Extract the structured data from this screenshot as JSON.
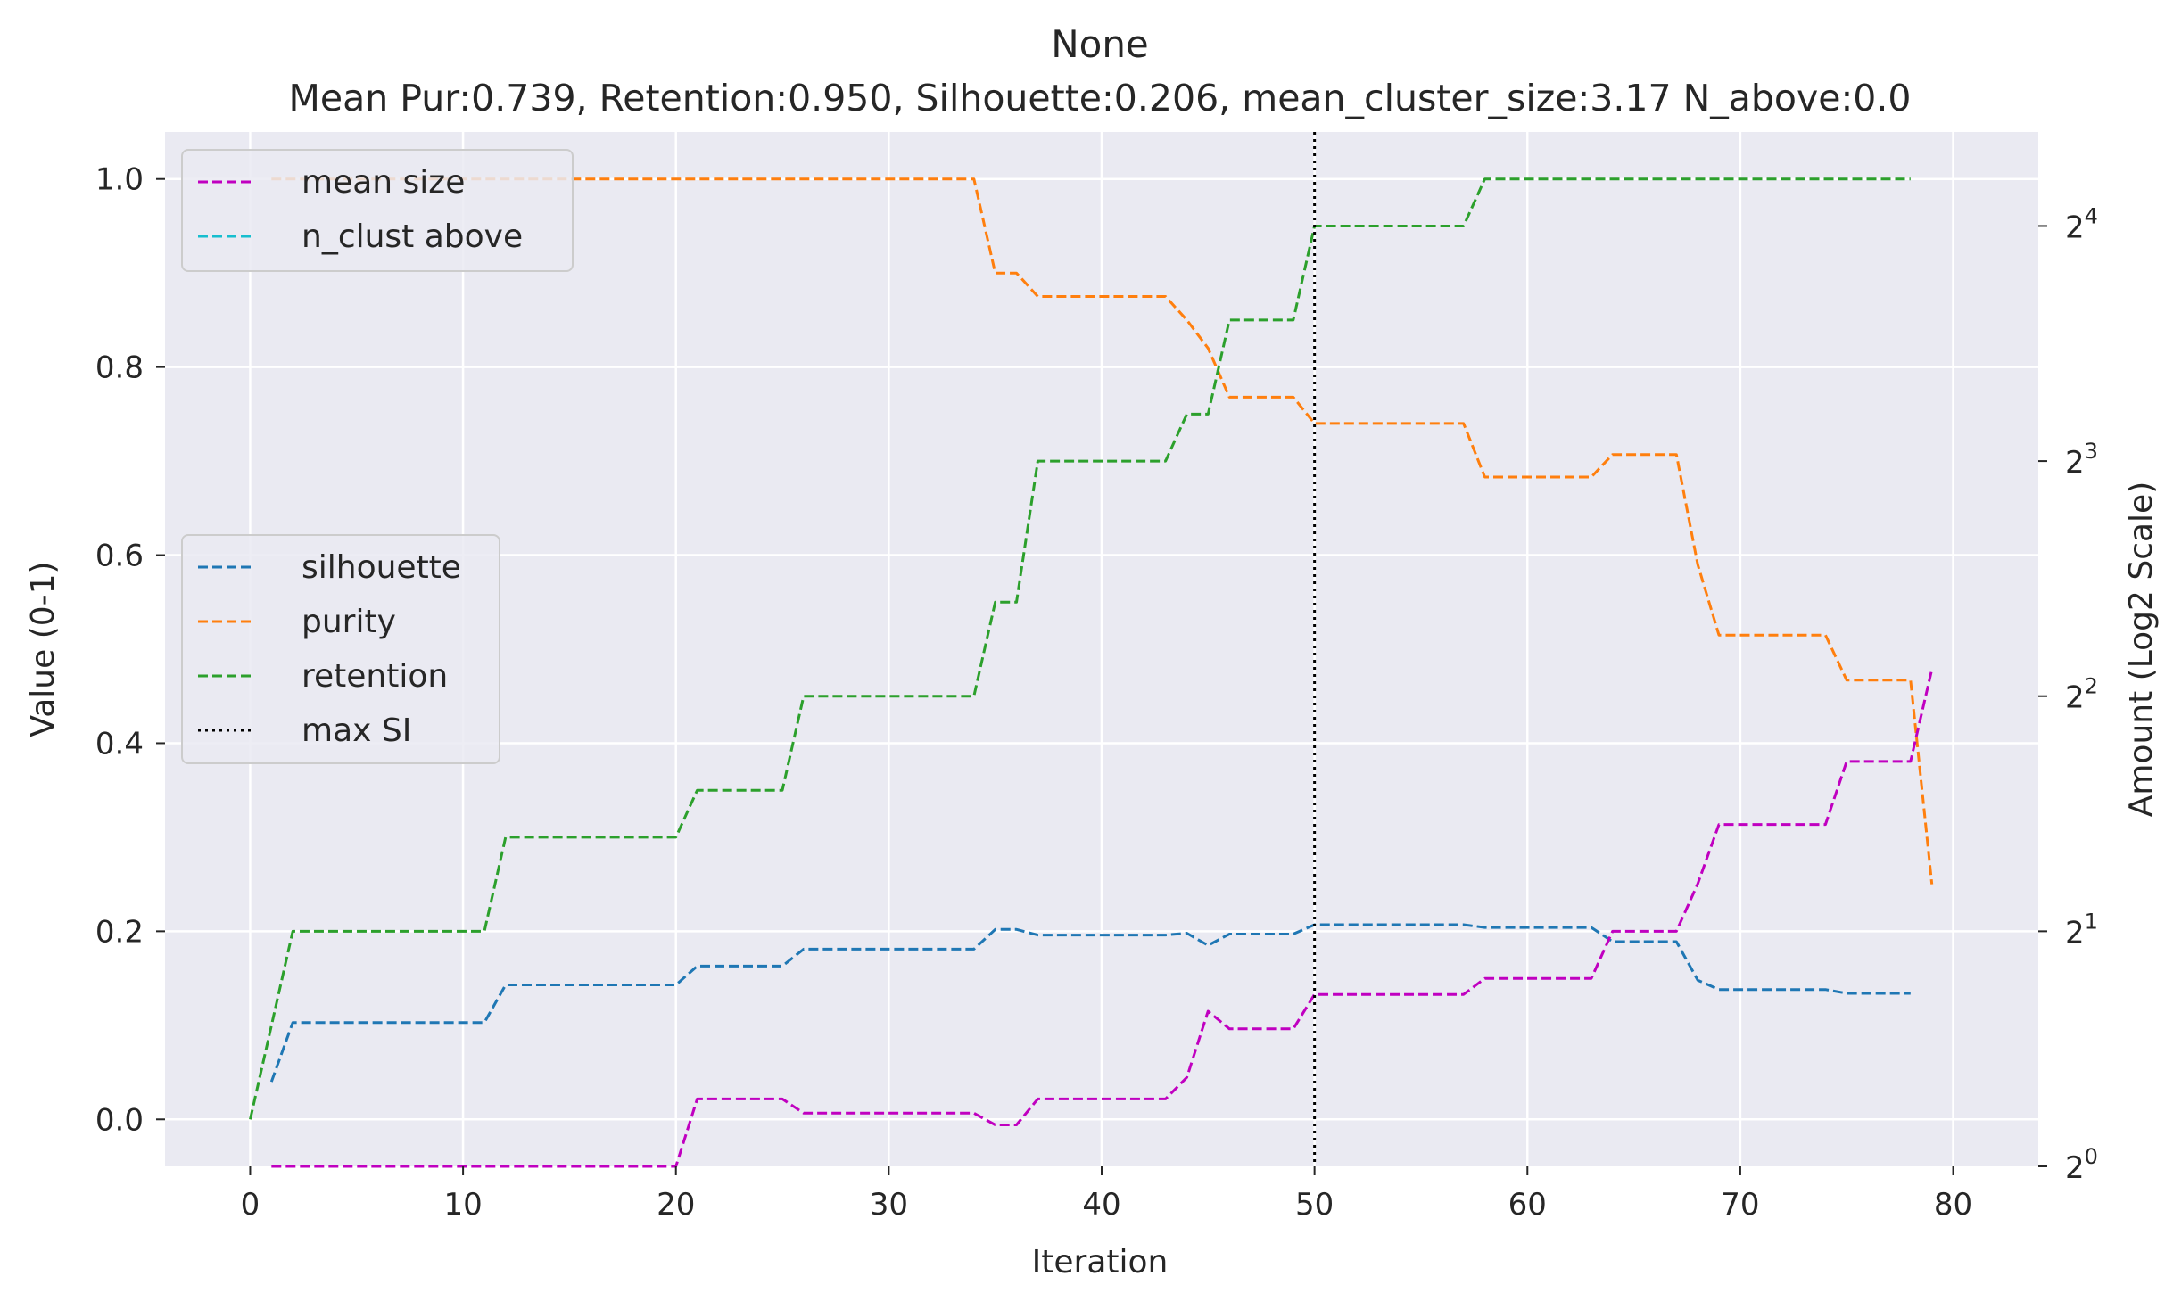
{
  "chart_data": {
    "type": "line",
    "title": "None",
    "subtitle": "Mean Pur:0.739, Retention:0.950, Silhouette:0.206, mean_cluster_size:3.17 N_above:0.0",
    "xlabel": "Iteration",
    "ylabel": "Value (0-1)",
    "y2label": "Amount (Log2 Scale)",
    "xlim": [
      -4,
      84
    ],
    "ylim": [
      -0.05,
      1.05
    ],
    "y2_scale": "log2",
    "y2_exponent_range": [
      0,
      4.4
    ],
    "x_ticks": [
      0,
      10,
      20,
      30,
      40,
      50,
      60,
      70,
      80
    ],
    "y_ticks": [
      0.0,
      0.2,
      0.4,
      0.6,
      0.8,
      1.0
    ],
    "y_tick_labels": [
      "0.0",
      "0.2",
      "0.4",
      "0.6",
      "0.8",
      "1.0"
    ],
    "y2_ticks": [
      {
        "exp": 0,
        "base": "2",
        "sup": "0"
      },
      {
        "exp": 1,
        "base": "2",
        "sup": "1"
      },
      {
        "exp": 2,
        "base": "2",
        "sup": "2"
      },
      {
        "exp": 3,
        "base": "2",
        "sup": "3"
      },
      {
        "exp": 4,
        "base": "2",
        "sup": "4"
      }
    ],
    "grid": true,
    "vline": {
      "x": 50,
      "name": "max SI",
      "color": "#000000"
    },
    "legend_left": {
      "placement": "center-left",
      "entries": [
        {
          "name": "silhouette",
          "color": "#1f77b4",
          "style": "dashed"
        },
        {
          "name": "purity",
          "color": "#ff7f0e",
          "style": "dashed"
        },
        {
          "name": "retention",
          "color": "#2ca02c",
          "style": "dashed"
        },
        {
          "name": "max SI",
          "color": "#000000",
          "style": "dotted"
        }
      ]
    },
    "legend_right": {
      "placement": "upper-left",
      "entries": [
        {
          "name": "mean size",
          "color": "#c000c0",
          "style": "dashed"
        },
        {
          "name": "n_clust above",
          "color": "#17becf",
          "style": "dashed"
        }
      ]
    },
    "series": [
      {
        "name": "silhouette",
        "axis": "left",
        "color": "#1f77b4",
        "points": [
          [
            1,
            0.04
          ],
          [
            2,
            0.103
          ],
          [
            11,
            0.103
          ],
          [
            12,
            0.143
          ],
          [
            20,
            0.143
          ],
          [
            21,
            0.163
          ],
          [
            25,
            0.163
          ],
          [
            26,
            0.181
          ],
          [
            34,
            0.181
          ],
          [
            35,
            0.202
          ],
          [
            36,
            0.202
          ],
          [
            37,
            0.196
          ],
          [
            43,
            0.196
          ],
          [
            44,
            0.198
          ],
          [
            45,
            0.185
          ],
          [
            46,
            0.197
          ],
          [
            49,
            0.197
          ],
          [
            50,
            0.207
          ],
          [
            57,
            0.207
          ],
          [
            58,
            0.204
          ],
          [
            63,
            0.204
          ],
          [
            64,
            0.189
          ],
          [
            67,
            0.189
          ],
          [
            68,
            0.148
          ],
          [
            69,
            0.138
          ],
          [
            74,
            0.138
          ],
          [
            75,
            0.134
          ],
          [
            78,
            0.134
          ]
        ]
      },
      {
        "name": "purity",
        "axis": "left",
        "color": "#ff7f0e",
        "points": [
          [
            1,
            1.0
          ],
          [
            34,
            1.0
          ],
          [
            35,
            0.9
          ],
          [
            36,
            0.9
          ],
          [
            37,
            0.875
          ],
          [
            43,
            0.875
          ],
          [
            44,
            0.85
          ],
          [
            45,
            0.82
          ],
          [
            46,
            0.768
          ],
          [
            49,
            0.768
          ],
          [
            50,
            0.74
          ],
          [
            57,
            0.74
          ],
          [
            58,
            0.683
          ],
          [
            63,
            0.683
          ],
          [
            64,
            0.707
          ],
          [
            67,
            0.707
          ],
          [
            68,
            0.59
          ],
          [
            69,
            0.515
          ],
          [
            74,
            0.515
          ],
          [
            75,
            0.467
          ],
          [
            78,
            0.467
          ],
          [
            79,
            0.25
          ]
        ]
      },
      {
        "name": "retention",
        "axis": "left",
        "color": "#2ca02c",
        "points": [
          [
            0,
            0.0
          ],
          [
            2,
            0.2
          ],
          [
            11,
            0.2
          ],
          [
            12,
            0.3
          ],
          [
            20,
            0.3
          ],
          [
            21,
            0.35
          ],
          [
            25,
            0.35
          ],
          [
            26,
            0.45
          ],
          [
            34,
            0.45
          ],
          [
            35,
            0.55
          ],
          [
            36,
            0.55
          ],
          [
            37,
            0.7
          ],
          [
            43,
            0.7
          ],
          [
            44,
            0.75
          ],
          [
            45,
            0.75
          ],
          [
            46,
            0.85
          ],
          [
            49,
            0.85
          ],
          [
            50,
            0.95
          ],
          [
            57,
            0.95
          ],
          [
            58,
            1.0
          ],
          [
            78,
            1.0
          ]
        ]
      },
      {
        "name": "mean size",
        "axis": "right",
        "color": "#c000c0",
        "points": [
          [
            1,
            1.0
          ],
          [
            20,
            1.0
          ],
          [
            21,
            1.22
          ],
          [
            25,
            1.22
          ],
          [
            26,
            1.17
          ],
          [
            34,
            1.17
          ],
          [
            35,
            1.13
          ],
          [
            36,
            1.13
          ],
          [
            37,
            1.22
          ],
          [
            43,
            1.22
          ],
          [
            44,
            1.3
          ],
          [
            45,
            1.58
          ],
          [
            46,
            1.5
          ],
          [
            49,
            1.5
          ],
          [
            50,
            1.66
          ],
          [
            57,
            1.66
          ],
          [
            58,
            1.74
          ],
          [
            63,
            1.74
          ],
          [
            64,
            2.0
          ],
          [
            67,
            2.0
          ],
          [
            68,
            2.3
          ],
          [
            69,
            2.74
          ],
          [
            74,
            2.74
          ],
          [
            75,
            3.3
          ],
          [
            78,
            3.3
          ],
          [
            79,
            4.33
          ]
        ]
      }
    ]
  }
}
